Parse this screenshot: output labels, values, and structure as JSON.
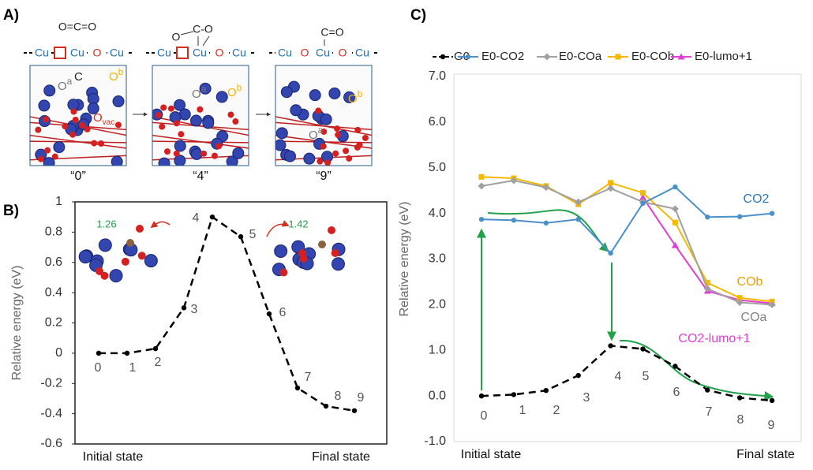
{
  "panel_labels": [
    "A)",
    "B)",
    "C)"
  ],
  "panel_a": {
    "structures": [
      {
        "molecule": [
          "O=C=O"
        ],
        "chain": [
          "Cu",
          "Cu",
          "O",
          "Cu"
        ],
        "atoms": [
          {
            "text": "O",
            "sup": "a"
          },
          {
            "text": "C"
          },
          {
            "text": "O",
            "sup": "b"
          },
          {
            "text": "O",
            "sub": "vac"
          }
        ],
        "caption": "“0”"
      },
      {
        "molecule": [
          "O",
          "C-O"
        ],
        "chain": [
          "Cu",
          "Cu",
          "O",
          "Cu"
        ],
        "atoms": [
          {
            "text": "O",
            "sup": "a"
          },
          {
            "text": "O",
            "sup": "b"
          }
        ],
        "caption": "“4”"
      },
      {
        "molecule": [
          "C=O"
        ],
        "chain": [
          "Cu",
          "O",
          "Cu",
          "O",
          "Cu"
        ],
        "atoms": [
          {
            "text": "O",
            "sup": "b"
          },
          {
            "text": "O",
            "sup": "a"
          }
        ],
        "caption": "“9”"
      }
    ]
  },
  "chart_data": [
    {
      "type": "line",
      "y_label": "Relative energy (eV)",
      "x_start_label": "Initial state",
      "x_end_label": "Final state",
      "categories": [
        "0",
        "1",
        "2",
        "3",
        "4",
        "5",
        "6",
        "7",
        "8",
        "9"
      ],
      "series": [
        {
          "name": "G0",
          "color": "#000000",
          "dashed": true,
          "marker": "circle",
          "values": [
            0.0,
            0.0,
            0.03,
            0.3,
            0.9,
            0.77,
            0.26,
            -0.23,
            -0.35,
            -0.38
          ]
        }
      ],
      "ylim": [
        -0.6,
        1
      ],
      "yticks": [
        -0.6,
        -0.4,
        -0.2,
        0,
        0.2,
        0.4,
        0.6,
        0.8,
        1
      ],
      "annotations": [
        {
          "text": "1.26",
          "color": "#22a04a"
        },
        {
          "text": "1.42",
          "color": "#22a04a"
        }
      ]
    },
    {
      "type": "line",
      "y_label": "Relative energy (eV)",
      "x_start_label": "Initial state",
      "x_end_label": "Final state",
      "categories": [
        "0",
        "1",
        "2",
        "3",
        "4",
        "5",
        "6",
        "7",
        "8",
        "9"
      ],
      "series": [
        {
          "name": "G0",
          "color": "#000000",
          "dashed": true,
          "marker": "circle",
          "values": [
            0.0,
            0.03,
            0.12,
            0.45,
            1.1,
            1.03,
            0.65,
            0.13,
            -0.04,
            -0.1
          ]
        },
        {
          "name": "E0-CO2",
          "color": "#4a90c8",
          "marker": "circle",
          "values": [
            3.87,
            3.85,
            3.79,
            3.87,
            3.13,
            4.22,
            4.58,
            3.92,
            3.93,
            4.0
          ]
        },
        {
          "name": "E0-COa",
          "color": "#a0a0a0",
          "marker": "diamond",
          "values": [
            4.6,
            4.72,
            4.57,
            4.25,
            4.55,
            4.25,
            4.1,
            2.35,
            2.05,
            2.0
          ]
        },
        {
          "name": "E0-COb",
          "color": "#f5b800",
          "marker": "square",
          "values": [
            4.8,
            4.77,
            4.6,
            4.2,
            4.67,
            4.45,
            3.8,
            2.48,
            2.15,
            2.07
          ]
        },
        {
          "name": "E0-lumo+1",
          "color": "#e040d0",
          "marker": "triangle",
          "values": [
            null,
            null,
            null,
            null,
            null,
            4.35,
            3.3,
            2.3,
            2.1,
            2.03
          ]
        }
      ],
      "ylim": [
        -1,
        7
      ],
      "yticks": [
        {
          "value": -1,
          "label": "-1.0"
        },
        {
          "value": 0,
          "label": "0.0"
        },
        {
          "value": 1,
          "label": "1.0"
        },
        {
          "value": 2,
          "label": "2.0"
        },
        {
          "value": 3,
          "label": "3.0"
        },
        {
          "value": 4,
          "label": "4.0"
        },
        {
          "value": 5,
          "label": "5.0"
        },
        {
          "value": 6,
          "label": "6.0"
        },
        {
          "value": 7,
          "label": "7.0"
        }
      ],
      "annotations": [
        {
          "text": "CO2",
          "color": "#2a7ab8"
        },
        {
          "text": "COb",
          "color": "#f0a000"
        },
        {
          "text": "COa",
          "color": "#808080"
        },
        {
          "text": "CO2-lumo+1",
          "color": "#e040d0"
        }
      ]
    }
  ]
}
